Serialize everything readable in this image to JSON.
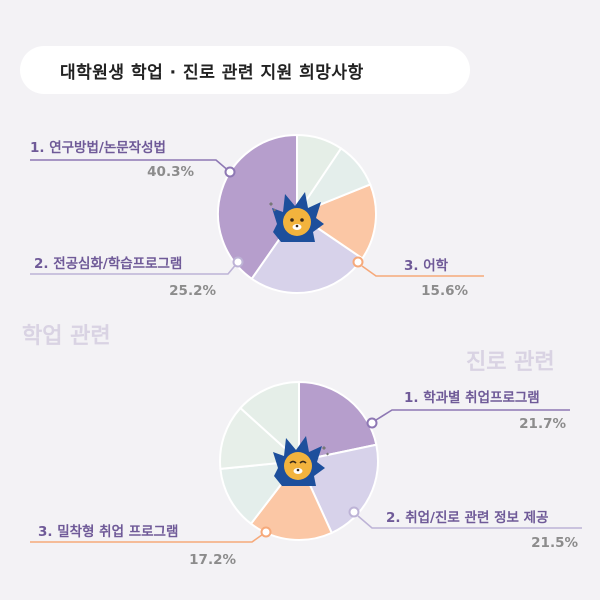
{
  "header": {
    "title": "대학원생 학업 · 진로 관련 지원 희망사항"
  },
  "sections": {
    "academic": "학업 관련",
    "career": "진로 관련"
  },
  "chart_data": [
    {
      "type": "pie",
      "section": "학업 관련",
      "slices": [
        {
          "label": "1. 연구방법/논문작성법",
          "value": 40.3,
          "display": "40.3%",
          "color": "#b69ecc",
          "highlight": true
        },
        {
          "label": "2. 전공심화/학습프로그램",
          "value": 25.2,
          "display": "25.2%",
          "color": "#d7d2ea",
          "highlight": true
        },
        {
          "label": "3. 어학",
          "value": 15.6,
          "display": "15.6%",
          "color": "#fbc7a5",
          "highlight": true
        },
        {
          "label": "",
          "value": 9.5,
          "display": "",
          "color": "#e4eeeb",
          "highlight": false
        },
        {
          "label": "",
          "value": 9.4,
          "display": "",
          "color": "#e5eee7",
          "highlight": false
        }
      ]
    },
    {
      "type": "pie",
      "section": "진로 관련",
      "slices": [
        {
          "label": "1. 학과별 취업프로그램",
          "value": 21.7,
          "display": "21.7%",
          "color": "#b69ecc",
          "highlight": true
        },
        {
          "label": "2. 취업/진로 관련 정보 제공",
          "value": 21.5,
          "display": "21.5%",
          "color": "#d7d2ea",
          "highlight": true
        },
        {
          "label": "3. 밀착형 취업 프로그램",
          "value": 17.2,
          "display": "17.2%",
          "color": "#fbc7a5",
          "highlight": true
        },
        {
          "label": "",
          "value": 13.0,
          "display": "",
          "color": "#e4eeeb",
          "highlight": false
        },
        {
          "label": "",
          "value": 13.3,
          "display": "",
          "color": "#e7efe9",
          "highlight": false
        },
        {
          "label": "",
          "value": 13.3,
          "display": "",
          "color": "#e5eee8",
          "highlight": false
        }
      ]
    }
  ]
}
